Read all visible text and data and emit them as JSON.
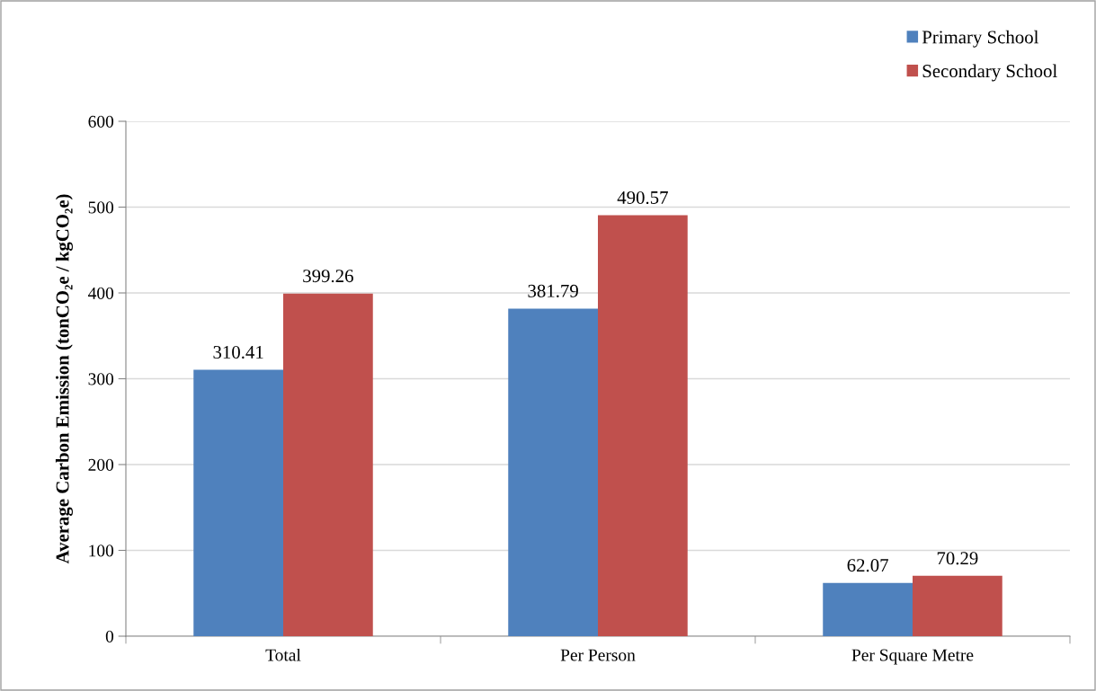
{
  "chart_data": {
    "type": "bar",
    "ylabel": "Average Carbon Emission (tonCO₂e / kgCO₂e)",
    "categories": [
      "Total",
      "Per Person",
      "Per Square Metre"
    ],
    "series": [
      {
        "name": "Primary School",
        "color": "#4f81bd",
        "values": [
          310.41,
          381.79,
          62.07
        ]
      },
      {
        "name": "Secondary School",
        "color": "#c0504d",
        "values": [
          399.26,
          490.57,
          70.29
        ]
      }
    ],
    "ylim": [
      0,
      600
    ],
    "yticks": [
      0,
      100,
      200,
      300,
      400,
      500,
      600
    ],
    "grid": "y",
    "legend": "top right",
    "data_labels": true
  }
}
